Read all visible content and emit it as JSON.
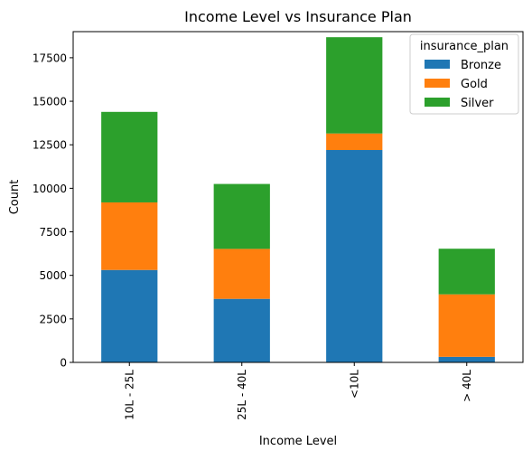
{
  "chart_data": {
    "type": "bar",
    "stacked": true,
    "title": "Income Level vs Insurance Plan",
    "xlabel": "Income Level",
    "ylabel": "Count",
    "categories": [
      "10L - 25L",
      "25L - 40L",
      "<10L",
      "> 40L"
    ],
    "series": [
      {
        "name": "Bronze",
        "color": "#1f77b4",
        "values": [
          5310,
          3650,
          12200,
          320
        ]
      },
      {
        "name": "Gold",
        "color": "#ff7f0e",
        "values": [
          3880,
          2870,
          950,
          3590
        ]
      },
      {
        "name": "Silver",
        "color": "#2ca02c",
        "values": [
          5200,
          3730,
          5530,
          2620
        ]
      }
    ],
    "ylim": [
      0,
      19000
    ],
    "yticks": [
      0,
      2500,
      5000,
      7500,
      10000,
      12500,
      15000,
      17500
    ],
    "ytick_labels": [
      "0",
      "2500",
      "5000",
      "7500",
      "10000",
      "12500",
      "15000",
      "17500"
    ],
    "legend": {
      "title": "insurance_plan",
      "placement": "top-right"
    },
    "grid": false
  }
}
